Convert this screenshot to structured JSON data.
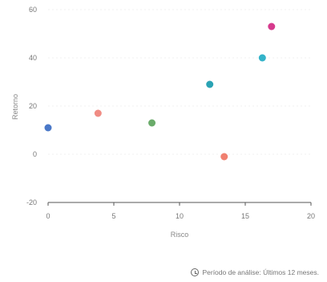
{
  "chart_data": {
    "type": "scatter",
    "title": "",
    "xlabel": "Risco",
    "ylabel": "Retorno",
    "xlim": [
      0,
      20
    ],
    "ylim": [
      -20,
      60
    ],
    "xticks": [
      "0",
      "5",
      "10",
      "15",
      "20"
    ],
    "yticks": [
      "60",
      "40",
      "20",
      "0",
      "-20"
    ],
    "grid": true,
    "points": [
      {
        "x": 0,
        "y": 11,
        "color": "#4a78c8"
      },
      {
        "x": 3.8,
        "y": 17,
        "color": "#f08c84"
      },
      {
        "x": 7.9,
        "y": 13,
        "color": "#6aab6a"
      },
      {
        "x": 12.3,
        "y": 29,
        "color": "#2aa3b4"
      },
      {
        "x": 13.4,
        "y": -1,
        "color": "#f08070"
      },
      {
        "x": 16.3,
        "y": 40,
        "color": "#33b3c9"
      },
      {
        "x": 17,
        "y": 53,
        "color": "#d63a8d"
      }
    ]
  },
  "footer": {
    "icon": "clock-icon",
    "text": "Período de análise: Últimos 12 meses."
  }
}
